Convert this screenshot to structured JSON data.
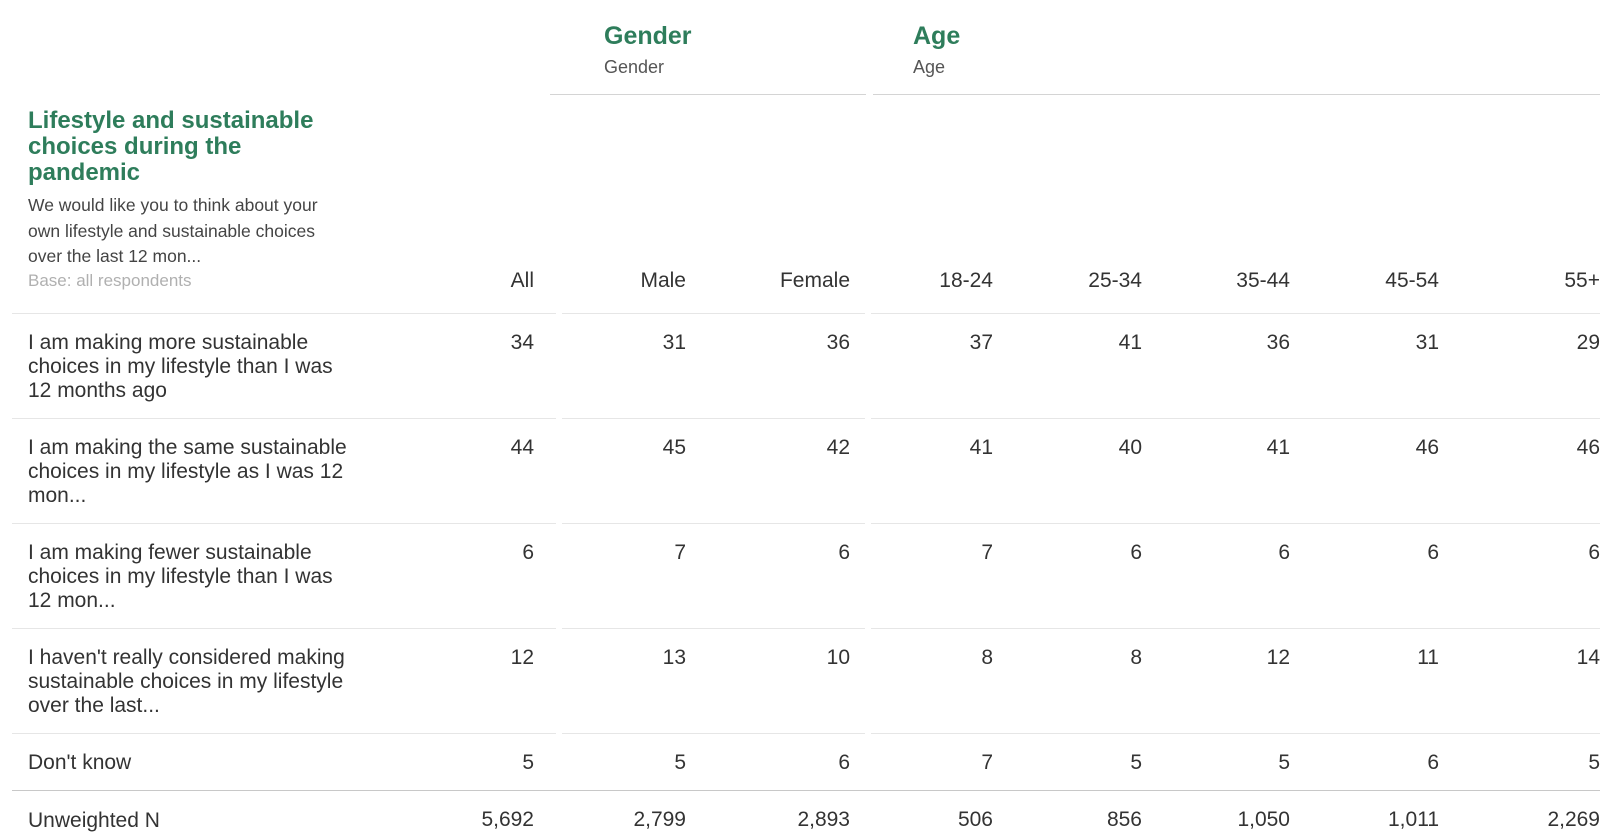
{
  "question": {
    "title": "Lifestyle and sustainable choices during the pandemic",
    "description": "We would like you to think about your own lifestyle and sustainable choices over the last 12 mon...",
    "base": "Base: all respondents"
  },
  "groups": [
    {
      "title": "Gender",
      "subtitle": "Gender"
    },
    {
      "title": "Age",
      "subtitle": "Age"
    }
  ],
  "columns": [
    "All",
    "Male",
    "Female",
    "18-24",
    "25-34",
    "35-44",
    "45-54",
    "55+"
  ],
  "rows": [
    {
      "label": "I am making more sustainable choices in my lifestyle than I was 12 months ago",
      "values": [
        "34",
        "31",
        "36",
        "37",
        "41",
        "36",
        "31",
        "29"
      ]
    },
    {
      "label": "I am making the same sustainable choices in my lifestyle as I was 12 mon...",
      "values": [
        "44",
        "45",
        "42",
        "41",
        "40",
        "41",
        "46",
        "46"
      ]
    },
    {
      "label": "I am making fewer sustainable choices in my lifestyle than I was 12 mon...",
      "values": [
        "6",
        "7",
        "6",
        "7",
        "6",
        "6",
        "6",
        "6"
      ]
    },
    {
      "label": "I haven't really considered making sustainable choices in my lifestyle over the last...",
      "values": [
        "12",
        "13",
        "10",
        "8",
        "8",
        "12",
        "11",
        "14"
      ]
    },
    {
      "label": "Don't know",
      "values": [
        "5",
        "5",
        "6",
        "7",
        "5",
        "5",
        "6",
        "5"
      ]
    }
  ],
  "unweighted": {
    "label": "Unweighted N",
    "values": [
      "5,692",
      "2,799",
      "2,893",
      "506",
      "856",
      "1,050",
      "1,011",
      "2,269"
    ]
  }
}
